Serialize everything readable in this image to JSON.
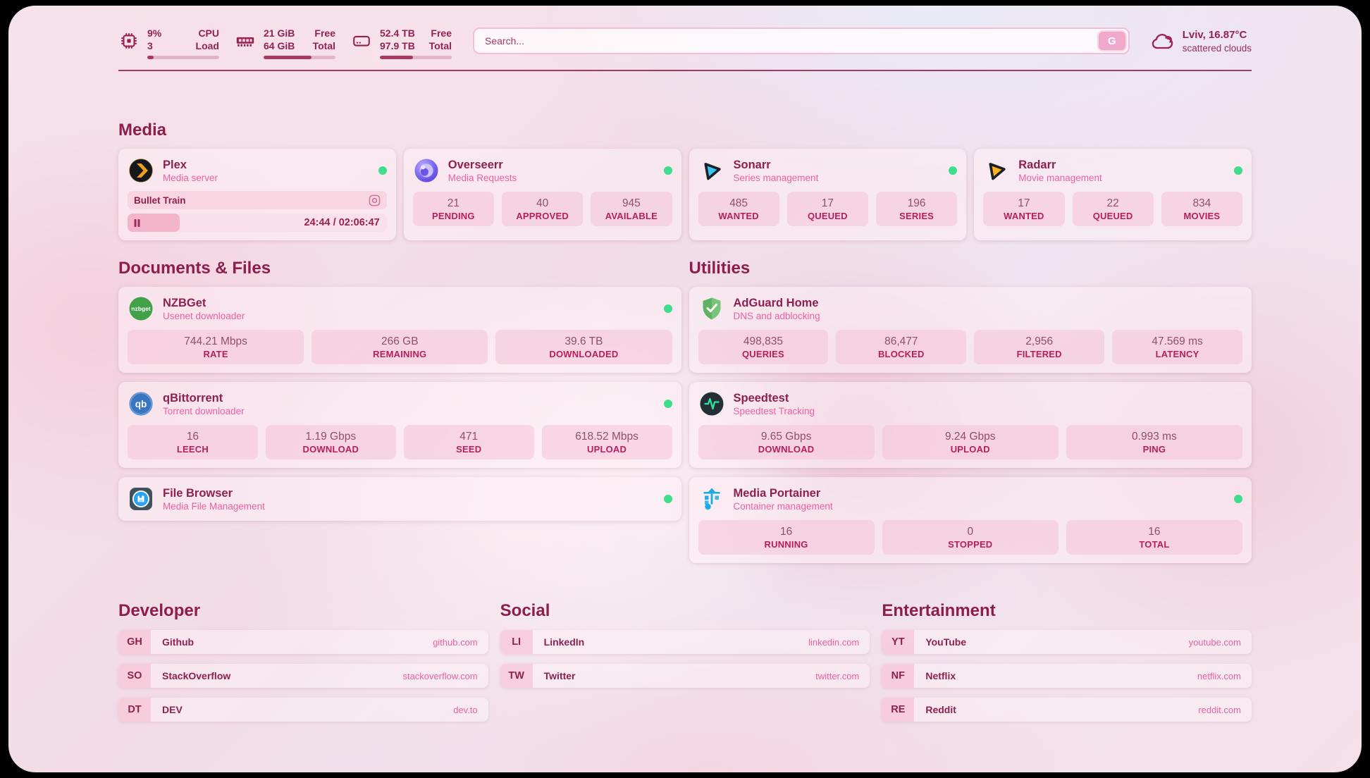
{
  "theme": {
    "accent_maroon": "#8d1d4c",
    "accent_pink": "#ee5fa3",
    "stat_label_color": "#b71e5d",
    "online_dot_color": "#3fdd8c"
  },
  "header": {
    "cpu": {
      "icon": "cpu-chip-icon",
      "value_top": "9%",
      "value_bottom": "3",
      "label_top": "CPU",
      "label_bottom": "Load",
      "progress_pct": 9
    },
    "memory": {
      "icon": "memory-icon",
      "value_top": "21 GiB",
      "value_bottom": "64 GiB",
      "label_top": "Free",
      "label_bottom": "Total",
      "progress_pct": 67
    },
    "disk": {
      "icon": "hard-drive-icon",
      "value_top": "52.4 TB",
      "value_bottom": "97.9 TB",
      "label_top": "Free",
      "label_bottom": "Total",
      "progress_pct": 46
    },
    "search": {
      "placeholder": "Search...",
      "button_label": "G"
    },
    "weather": {
      "icon": "cloud-icon",
      "location": "Lviv, 16.87°C",
      "condition": "scattered clouds"
    }
  },
  "sections": {
    "media": {
      "title": "Media"
    },
    "documents": {
      "title": "Documents & Files"
    },
    "utilities": {
      "title": "Utilities"
    },
    "developer": {
      "title": "Developer"
    },
    "social": {
      "title": "Social"
    },
    "entertainment": {
      "title": "Entertainment"
    }
  },
  "apps": {
    "plex": {
      "name": "Plex",
      "subtitle": "Media server",
      "icon": "plex-logo-icon",
      "status_dot": true,
      "now_playing": {
        "title": "Bullet Train",
        "state": "paused",
        "time": "24:44 / 02:06:47",
        "progress_pct": 20
      }
    },
    "overseerr": {
      "name": "Overseerr",
      "subtitle": "Media Requests",
      "icon": "overseerr-logo-icon",
      "status_dot": true,
      "stats": [
        {
          "value": "21",
          "label": "PENDING"
        },
        {
          "value": "40",
          "label": "APPROVED"
        },
        {
          "value": "945",
          "label": "AVAILABLE"
        }
      ]
    },
    "sonarr": {
      "name": "Sonarr",
      "subtitle": "Series management",
      "icon": "sonarr-logo-icon",
      "status_dot": true,
      "stats": [
        {
          "value": "485",
          "label": "WANTED"
        },
        {
          "value": "17",
          "label": "QUEUED"
        },
        {
          "value": "196",
          "label": "SERIES"
        }
      ]
    },
    "radarr": {
      "name": "Radarr",
      "subtitle": "Movie management",
      "icon": "radarr-logo-icon",
      "status_dot": true,
      "stats": [
        {
          "value": "17",
          "label": "WANTED"
        },
        {
          "value": "22",
          "label": "QUEUED"
        },
        {
          "value": "834",
          "label": "MOVIES"
        }
      ]
    },
    "nzbget": {
      "name": "NZBGet",
      "subtitle": "Usenet downloader",
      "icon": "nzbget-logo-icon",
      "status_dot": true,
      "stats": [
        {
          "value": "744.21 Mbps",
          "label": "RATE"
        },
        {
          "value": "266 GB",
          "label": "REMAINING"
        },
        {
          "value": "39.6 TB",
          "label": "DOWNLOADED"
        }
      ]
    },
    "qbittorrent": {
      "name": "qBittorrent",
      "subtitle": "Torrent downloader",
      "icon": "qbittorrent-logo-icon",
      "status_dot": true,
      "stats": [
        {
          "value": "16",
          "label": "LEECH"
        },
        {
          "value": "1.19 Gbps",
          "label": "DOWNLOAD"
        },
        {
          "value": "471",
          "label": "SEED"
        },
        {
          "value": "618.52 Mbps",
          "label": "UPLOAD"
        }
      ]
    },
    "filebrowser": {
      "name": "File Browser",
      "subtitle": "Media File Management",
      "icon": "filebrowser-logo-icon",
      "status_dot": true
    },
    "adguard": {
      "name": "AdGuard Home",
      "subtitle": "DNS and adblocking",
      "icon": "adguard-logo-icon",
      "status_dot": false,
      "stats": [
        {
          "value": "498,835",
          "label": "QUERIES"
        },
        {
          "value": "86,477",
          "label": "BLOCKED"
        },
        {
          "value": "2,956",
          "label": "FILTERED"
        },
        {
          "value": "47.569 ms",
          "label": "LATENCY"
        }
      ]
    },
    "speedtest": {
      "name": "Speedtest",
      "subtitle": "Speedtest Tracking",
      "icon": "speedtest-logo-icon",
      "status_dot": false,
      "stats": [
        {
          "value": "9.65 Gbps",
          "label": "DOWNLOAD"
        },
        {
          "value": "9.24 Gbps",
          "label": "UPLOAD"
        },
        {
          "value": "0.993 ms",
          "label": "PING"
        }
      ]
    },
    "portainer": {
      "name": "Media Portainer",
      "subtitle": "Container management",
      "icon": "portainer-logo-icon",
      "status_dot": true,
      "stats": [
        {
          "value": "16",
          "label": "RUNNING"
        },
        {
          "value": "0",
          "label": "STOPPED"
        },
        {
          "value": "16",
          "label": "TOTAL"
        }
      ]
    }
  },
  "bookmarks": {
    "developer": [
      {
        "abbr": "GH",
        "name": "Github",
        "url": "github.com"
      },
      {
        "abbr": "SO",
        "name": "StackOverflow",
        "url": "stackoverflow.com"
      },
      {
        "abbr": "DT",
        "name": "DEV",
        "url": "dev.to"
      }
    ],
    "social": [
      {
        "abbr": "LI",
        "name": "LinkedIn",
        "url": "linkedin.com"
      },
      {
        "abbr": "TW",
        "name": "Twitter",
        "url": "twitter.com"
      }
    ],
    "entertainment": [
      {
        "abbr": "YT",
        "name": "YouTube",
        "url": "youtube.com"
      },
      {
        "abbr": "NF",
        "name": "Netflix",
        "url": "netflix.com"
      },
      {
        "abbr": "RE",
        "name": "Reddit",
        "url": "reddit.com"
      }
    ]
  }
}
